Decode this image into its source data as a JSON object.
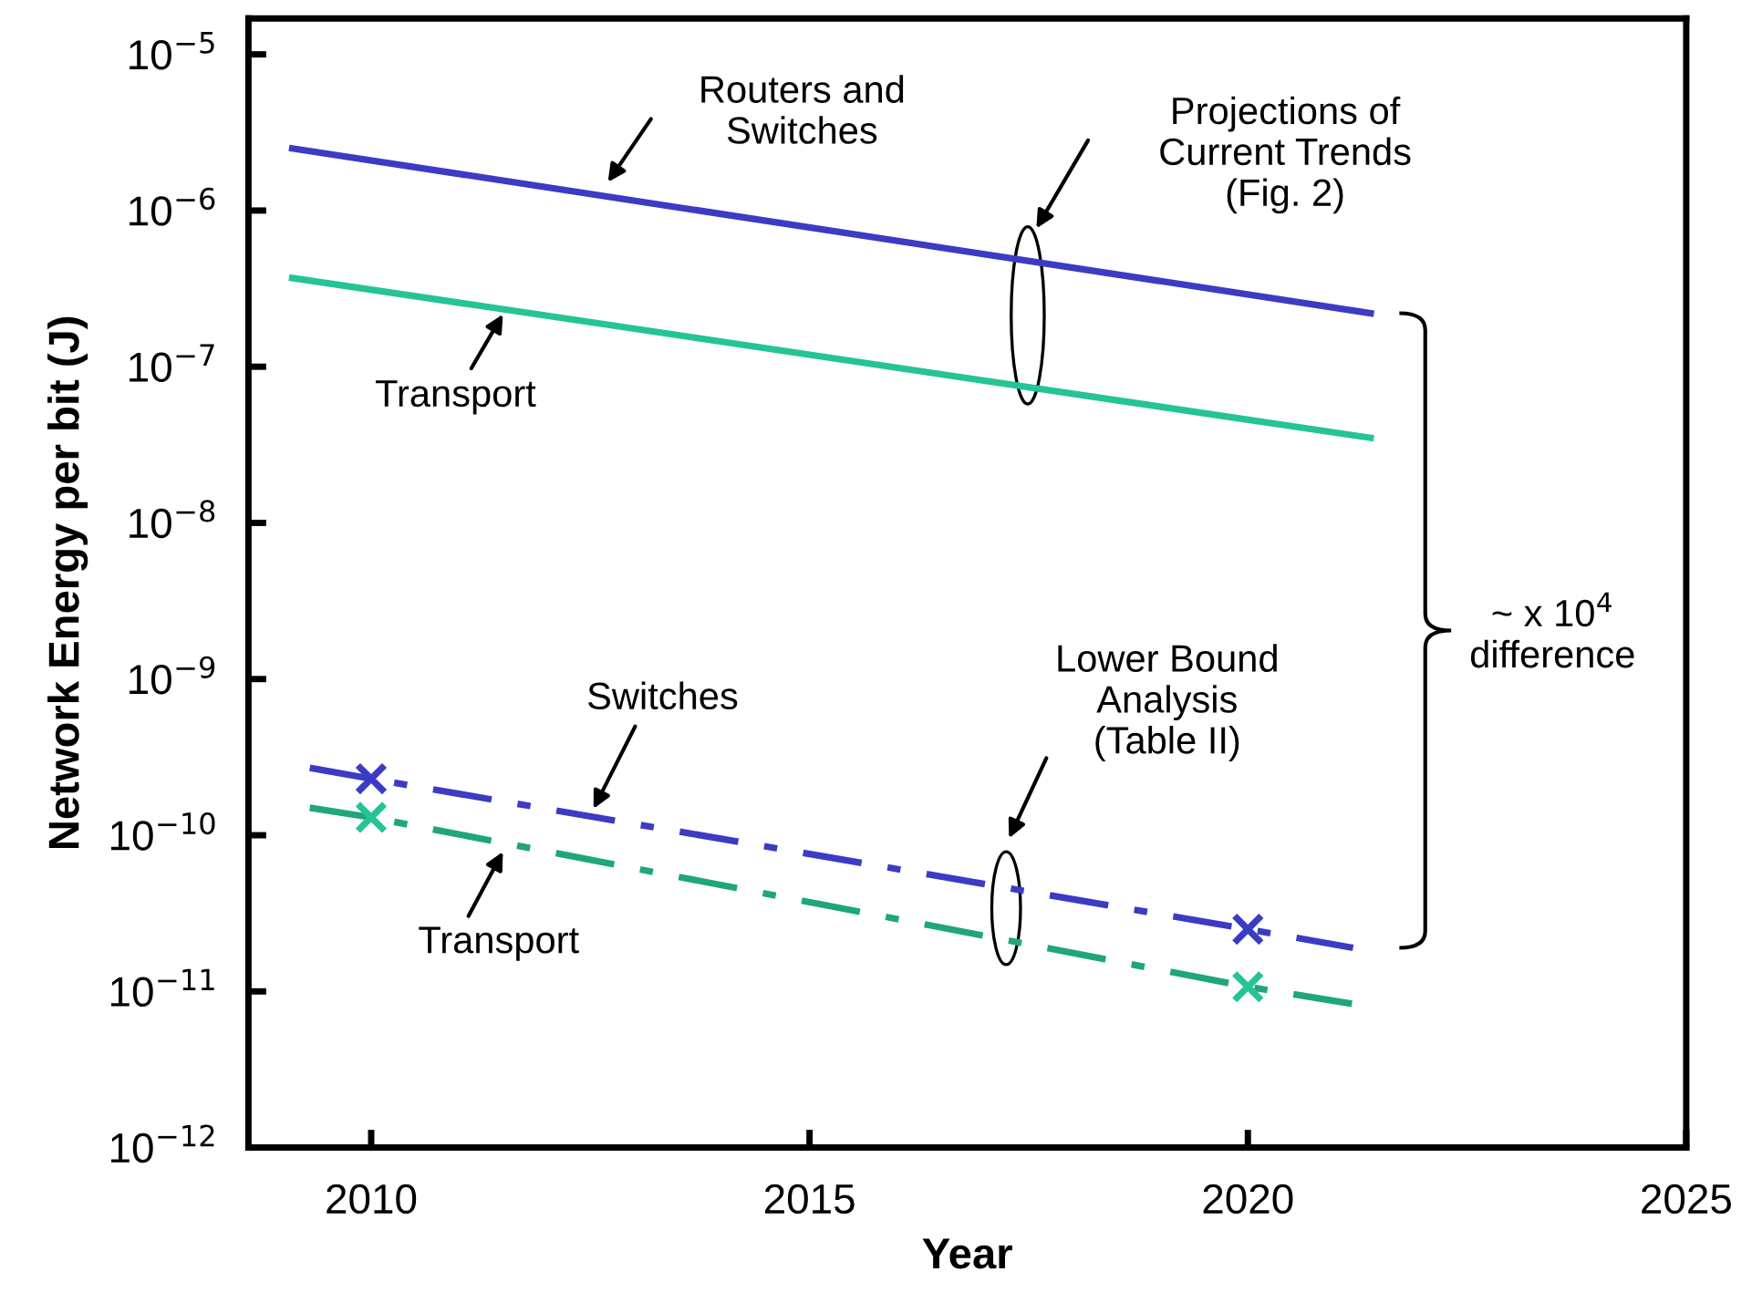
{
  "chart_data": {
    "type": "line",
    "xlabel": "Year",
    "ylabel": "Network Energy per bit (J)",
    "log": "y",
    "xlim": [
      2008.6,
      2025
    ],
    "xticks": [
      2010,
      2015,
      2020,
      2025
    ],
    "ylim": [
      1e-12,
      1.7e-05
    ],
    "yticks": [
      {
        "value": 1e-12,
        "label": "10$^{−12}$"
      },
      {
        "value": 1e-11,
        "label": "10$^{−11}$"
      },
      {
        "value": 1e-10,
        "label": "10$^{−10}$"
      },
      {
        "value": 1e-09,
        "label": "10$^{−9}$"
      },
      {
        "value": 1e-08,
        "label": "10$^{−8}$"
      },
      {
        "value": 1e-07,
        "label": "10$^{−7}$"
      },
      {
        "value": 1e-06,
        "label": "10$^{−6}$"
      },
      {
        "value": 1e-05,
        "label": "10$^{−5}$"
      }
    ],
    "grid": false,
    "legend": false,
    "series": [
      {
        "color": "#3b3bc4",
        "line_style": "solid",
        "marker": "none",
        "x": [
          2009.1,
          2021.4
        ],
        "values": [
          2.5e-06,
          2.2e-07
        ]
      },
      {
        "color": "#25c495",
        "line_style": "solid",
        "marker": "none",
        "x": [
          2009.1,
          2021.4
        ],
        "values": [
          3.7e-07,
          3.5e-08
        ]
      },
      {
        "color": "#3b3bc4",
        "line_style": "dashdot",
        "marker": "none",
        "x": [
          2009.3,
          2010,
          2020,
          2021.2
        ],
        "values": [
          2.7e-10,
          2.3e-10,
          2.5e-11,
          1.9e-11
        ]
      },
      {
        "color": "#1fa67a",
        "line_style": "dashdot",
        "marker": "none",
        "x": [
          2009.3,
          2010,
          2020,
          2021.2
        ],
        "values": [
          1.5e-10,
          1.3e-10,
          1.07e-11,
          8.3e-12
        ]
      },
      {
        "type": "scatter",
        "color": "#3b3bc4",
        "marker": "cross",
        "x": [
          2010,
          2020
        ],
        "values": [
          2.3e-10,
          2.5e-11
        ]
      },
      {
        "type": "scatter",
        "color": "#25c495",
        "marker": "cross",
        "x": [
          2010,
          2020
        ],
        "values": [
          1.3e-10,
          1.07e-11
        ]
      }
    ],
    "annotations": [
      "Routers and\nSwitches",
      "Transport",
      "Projections of\nCurrent Trends\n(Fig. 2)",
      "Switches",
      "Lower Bound\nAnalysis\n(Table II)",
      "Transport",
      "~ x 10$^{4}$\ndifference"
    ]
  }
}
